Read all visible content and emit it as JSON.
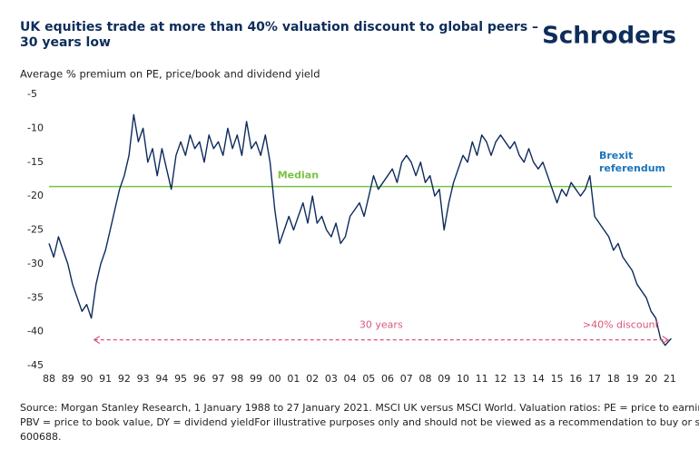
{
  "chart_data": {
    "type": "line",
    "title": "UK equities trade at more than 40% valuation discount to global peers – 30 years low",
    "logo": "Schroders",
    "y_label": "Average % premium on PE, price/book and dividend yield",
    "source": [
      "Source: Morgan Stanley Research, 1 January 1988 to 27 January 2021. MSCI UK versus MSCI World. Valuation ratios: PE = price to earnings,",
      "PBV = price to book value, DY = dividend yieldFor illustrative purposes only and should not be viewed as a recommendation to buy or sell.",
      "600688."
    ],
    "color": "#0d2b5e",
    "x": [
      1988,
      1988.25,
      1988.5,
      1988.75,
      1989,
      1989.25,
      1989.5,
      1989.75,
      1990,
      1990.25,
      1990.5,
      1990.75,
      1991,
      1991.25,
      1991.5,
      1991.75,
      1992,
      1992.25,
      1992.5,
      1992.75,
      1993,
      1993.25,
      1993.5,
      1993.75,
      1994,
      1994.25,
      1994.5,
      1994.75,
      1995,
      1995.25,
      1995.5,
      1995.75,
      1996,
      1996.25,
      1996.5,
      1996.75,
      1997,
      1997.25,
      1997.5,
      1997.75,
      1998,
      1998.25,
      1998.5,
      1998.75,
      1999,
      1999.25,
      1999.5,
      1999.75,
      2000,
      2000.25,
      2000.5,
      2000.75,
      2001,
      2001.25,
      2001.5,
      2001.75,
      2002,
      2002.25,
      2002.5,
      2002.75,
      2003,
      2003.25,
      2003.5,
      2003.75,
      2004,
      2004.25,
      2004.5,
      2004.75,
      2005,
      2005.25,
      2005.5,
      2005.75,
      2006,
      2006.25,
      2006.5,
      2006.75,
      2007,
      2007.25,
      2007.5,
      2007.75,
      2008,
      2008.25,
      2008.5,
      2008.75,
      2009,
      2009.25,
      2009.5,
      2009.75,
      2010,
      2010.25,
      2010.5,
      2010.75,
      2011,
      2011.25,
      2011.5,
      2011.75,
      2012,
      2012.25,
      2012.5,
      2012.75,
      2013,
      2013.25,
      2013.5,
      2013.75,
      2014,
      2014.25,
      2014.5,
      2014.75,
      2015,
      2015.25,
      2015.5,
      2015.75,
      2016,
      2016.25,
      2016.5,
      2016.75,
      2017,
      2017.25,
      2017.5,
      2017.75,
      2018,
      2018.25,
      2018.5,
      2018.75,
      2019,
      2019.25,
      2019.5,
      2019.75,
      2020,
      2020.25,
      2020.5,
      2020.75,
      2021.07
    ],
    "values": [
      -27,
      -29,
      -26,
      -28,
      -30,
      -33,
      -35,
      -37,
      -36,
      -38,
      -33,
      -30,
      -28,
      -25,
      -22,
      -19,
      -17,
      -14,
      -8,
      -12,
      -10,
      -15,
      -13,
      -17,
      -13,
      -16,
      -19,
      -14,
      -12,
      -14,
      -11,
      -13,
      -12,
      -15,
      -11,
      -13,
      -12,
      -14,
      -10,
      -13,
      -11,
      -14,
      -9,
      -13,
      -12,
      -14,
      -11,
      -15,
      -22,
      -27,
      -25,
      -23,
      -25,
      -23,
      -21,
      -24,
      -20,
      -24,
      -23,
      -25,
      -26,
      -24,
      -27,
      -26,
      -23,
      -22,
      -21,
      -23,
      -20,
      -17,
      -19,
      -18,
      -17,
      -16,
      -18,
      -15,
      -14,
      -15,
      -17,
      -15,
      -18,
      -17,
      -20,
      -19,
      -25,
      -21,
      -18,
      -16,
      -14,
      -15,
      -12,
      -14,
      -11,
      -12,
      -14,
      -12,
      -11,
      -12,
      -13,
      -12,
      -14,
      -15,
      -13,
      -15,
      -16,
      -15,
      -17,
      -19,
      -21,
      -19,
      -20,
      -18,
      -19,
      -20,
      -19,
      -17,
      -23,
      -24,
      -25,
      -26,
      -28,
      -27,
      -29,
      -30,
      -31,
      -33,
      -34,
      -35,
      -37,
      -38,
      -41,
      -42,
      -41
    ],
    "median": {
      "value": -18.6,
      "label": "Median",
      "color": "#7ac143"
    },
    "brexit": [
      "Brexit",
      "referendum"
    ],
    "span": {
      "start": 1990.4,
      "end": 2020.9,
      "y": -41.2,
      "label": "30 years",
      "end_label": ">40% discount",
      "color": "#d9577a"
    },
    "xlim": [
      1988,
      2021.1
    ],
    "ylim": [
      -45,
      -5
    ],
    "yticks": [
      -5,
      -10,
      -15,
      -20,
      -25,
      -30,
      -35,
      -40,
      -45
    ],
    "xticks": [
      {
        "value": 1988,
        "label": "88"
      },
      {
        "value": 1989,
        "label": "89"
      },
      {
        "value": 1990,
        "label": "90"
      },
      {
        "value": 1991,
        "label": "91"
      },
      {
        "value": 1992,
        "label": "92"
      },
      {
        "value": 1993,
        "label": "93"
      },
      {
        "value": 1994,
        "label": "94"
      },
      {
        "value": 1995,
        "label": "95"
      },
      {
        "value": 1996,
        "label": "96"
      },
      {
        "value": 1997,
        "label": "97"
      },
      {
        "value": 1998,
        "label": "98"
      },
      {
        "value": 1999,
        "label": "99"
      },
      {
        "value": 2000,
        "label": "00"
      },
      {
        "value": 2001,
        "label": "01"
      },
      {
        "value": 2002,
        "label": "02"
      },
      {
        "value": 2003,
        "label": "03"
      },
      {
        "value": 2004,
        "label": "04"
      },
      {
        "value": 2005,
        "label": "05"
      },
      {
        "value": 2006,
        "label": "06"
      },
      {
        "value": 2007,
        "label": "07"
      },
      {
        "value": 2008,
        "label": "08"
      },
      {
        "value": 2009,
        "label": "09"
      },
      {
        "value": 2010,
        "label": "10"
      },
      {
        "value": 2011,
        "label": "11"
      },
      {
        "value": 2012,
        "label": "12"
      },
      {
        "value": 2013,
        "label": "13"
      },
      {
        "value": 2014,
        "label": "14"
      },
      {
        "value": 2015,
        "label": "15"
      },
      {
        "value": 2016,
        "label": "16"
      },
      {
        "value": 2017,
        "label": "17"
      },
      {
        "value": 2018,
        "label": "18"
      },
      {
        "value": 2019,
        "label": "19"
      },
      {
        "value": 2020,
        "label": "20"
      },
      {
        "value": 2021,
        "label": "21"
      }
    ]
  }
}
